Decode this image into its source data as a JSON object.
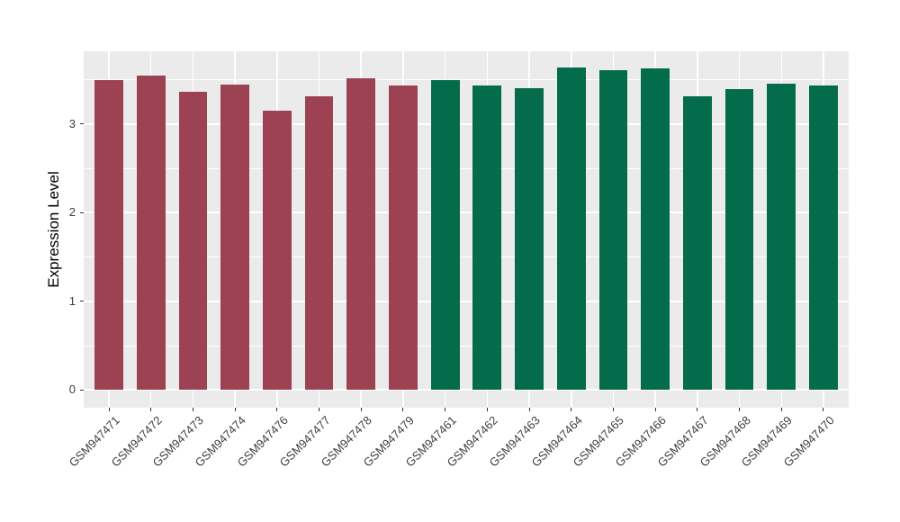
{
  "figure": {
    "background": "#FFFFFF"
  },
  "chart_data": {
    "type": "bar",
    "title": "",
    "xlabel": "",
    "ylabel": "Expression Level",
    "categories": [
      "GSM947471",
      "GSM947472",
      "GSM947473",
      "GSM947474",
      "GSM947476",
      "GSM947477",
      "GSM947478",
      "GSM947479",
      "GSM947461",
      "GSM947462",
      "GSM947463",
      "GSM947464",
      "GSM947465",
      "GSM947466",
      "GSM947467",
      "GSM947468",
      "GSM947469",
      "GSM947470"
    ],
    "values": [
      3.49,
      3.54,
      3.36,
      3.44,
      3.15,
      3.31,
      3.51,
      3.43,
      3.49,
      3.43,
      3.4,
      3.63,
      3.6,
      3.62,
      3.31,
      3.39,
      3.45,
      3.43
    ],
    "bar_colors": [
      "#9C4253",
      "#9C4253",
      "#9C4253",
      "#9C4253",
      "#9C4253",
      "#9C4253",
      "#9C4253",
      "#9C4253",
      "#046B4B",
      "#046B4B",
      "#046B4B",
      "#046B4B",
      "#046B4B",
      "#046B4B",
      "#046B4B",
      "#046B4B",
      "#046B4B",
      "#046B4B"
    ],
    "group_colors": {
      "left_group": "#9C4253",
      "right_group": "#046B4B"
    },
    "yticks": [
      0,
      1,
      2,
      3
    ],
    "ylim": [
      -0.19,
      3.82
    ],
    "grid": true,
    "legend": "none",
    "panel_bg": "#EBEBEB",
    "grid_color": "#FFFFFF",
    "tick_color": "#333333",
    "tick_label_color": "#404040",
    "x_label_angle_deg": 45
  }
}
